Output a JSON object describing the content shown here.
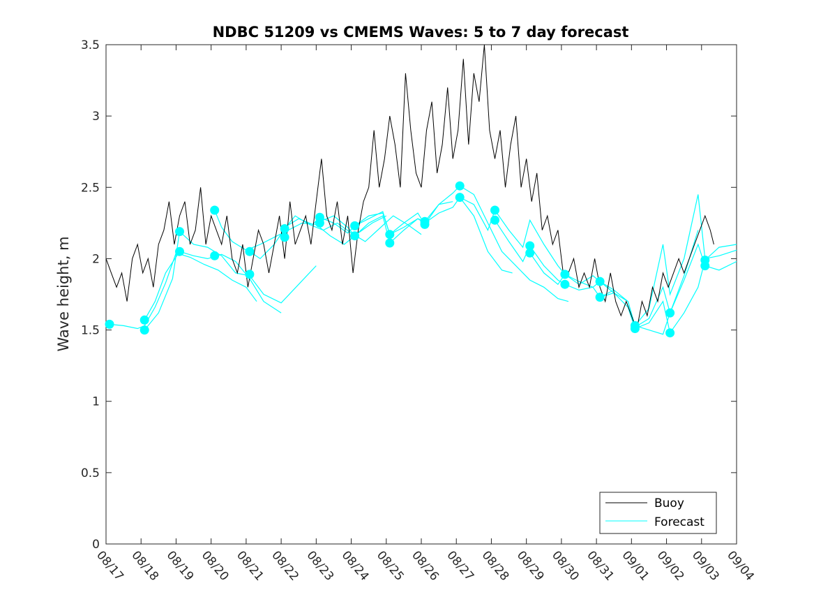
{
  "chart_data": {
    "type": "line",
    "title": "NDBC 51209 vs CMEMS Waves: 5 to 7 day forecast",
    "xlabel": "",
    "ylabel": "Wave height, m",
    "ylim": [
      0,
      3.5
    ],
    "yticks": [
      0,
      0.5,
      1,
      1.5,
      2,
      2.5,
      3,
      3.5
    ],
    "ytick_labels": [
      "0",
      "0.5",
      "1",
      "1.5",
      "2",
      "2.5",
      "3",
      "3.5"
    ],
    "xlim": [
      0,
      18
    ],
    "xtick_labels": [
      "08/17",
      "08/18",
      "08/19",
      "08/20",
      "08/21",
      "08/22",
      "08/23",
      "08/24",
      "08/25",
      "08/26",
      "08/27",
      "08/28",
      "08/29",
      "08/30",
      "08/31",
      "09/01",
      "09/02",
      "09/03",
      "09/04"
    ],
    "grid": false,
    "legend": {
      "position": "bottom-right",
      "entries": [
        "Buoy",
        "Forecast"
      ]
    },
    "colors": {
      "buoy": "#000000",
      "forecast": "#00ffff",
      "axes": "#262626"
    },
    "buoy": {
      "name": "Buoy",
      "days": [
        0.0,
        0.15,
        0.3,
        0.45,
        0.6,
        0.75,
        0.9,
        1.05,
        1.2,
        1.35,
        1.5,
        1.65,
        1.8,
        1.95,
        2.1,
        2.25,
        2.4,
        2.55,
        2.7,
        2.85,
        3.0,
        3.15,
        3.3,
        3.45,
        3.6,
        3.75,
        3.9,
        4.05,
        4.2,
        4.35,
        4.5,
        4.65,
        4.8,
        4.95,
        5.1,
        5.25,
        5.4,
        5.55,
        5.7,
        5.85,
        6.0,
        6.15,
        6.3,
        6.45,
        6.6,
        6.75,
        6.9,
        7.05,
        7.2,
        7.35,
        7.5,
        7.65,
        7.8,
        7.95,
        8.1,
        8.25,
        8.4,
        8.55,
        8.7,
        8.85,
        9.0,
        9.15,
        9.3,
        9.45,
        9.6,
        9.75,
        9.9,
        10.05,
        10.2,
        10.35,
        10.5,
        10.65,
        10.8,
        10.95,
        11.1,
        11.25,
        11.4,
        11.55,
        11.7,
        11.85,
        12.0,
        12.15,
        12.3,
        12.45,
        12.6,
        12.75,
        12.9,
        13.05,
        13.2,
        13.35,
        13.5,
        13.65,
        13.8,
        13.95,
        14.1,
        14.25,
        14.4,
        14.55,
        14.7,
        14.85,
        15.0,
        15.15,
        15.3,
        15.45,
        15.6,
        15.75,
        15.9,
        16.05,
        16.2,
        16.35,
        16.5,
        16.65,
        16.8,
        16.95,
        17.1,
        17.25,
        17.35
      ],
      "values": [
        2.0,
        1.9,
        1.8,
        1.9,
        1.7,
        2.0,
        2.1,
        1.9,
        2.0,
        1.8,
        2.1,
        2.2,
        2.4,
        2.1,
        2.3,
        2.4,
        2.1,
        2.2,
        2.5,
        2.1,
        2.3,
        2.2,
        2.1,
        2.3,
        2.0,
        1.9,
        2.1,
        1.8,
        2.0,
        2.2,
        2.1,
        1.9,
        2.1,
        2.3,
        2.0,
        2.4,
        2.1,
        2.2,
        2.3,
        2.1,
        2.4,
        2.7,
        2.3,
        2.2,
        2.4,
        2.1,
        2.3,
        1.9,
        2.2,
        2.4,
        2.5,
        2.9,
        2.5,
        2.7,
        3.0,
        2.8,
        2.5,
        3.3,
        2.9,
        2.6,
        2.5,
        2.9,
        3.1,
        2.6,
        2.8,
        3.2,
        2.7,
        2.9,
        3.4,
        2.8,
        3.3,
        3.1,
        3.5,
        2.9,
        2.7,
        2.9,
        2.5,
        2.8,
        3.0,
        2.5,
        2.7,
        2.4,
        2.6,
        2.2,
        2.3,
        2.1,
        2.2,
        1.9,
        1.9,
        2.0,
        1.8,
        1.9,
        1.8,
        2.0,
        1.8,
        1.7,
        1.9,
        1.7,
        1.6,
        1.7,
        1.6,
        1.5,
        1.7,
        1.6,
        1.8,
        1.7,
        1.9,
        1.8,
        1.9,
        2.0,
        1.9,
        2.0,
        2.1,
        2.2,
        2.3,
        2.2,
        2.1
      ]
    },
    "forecast": {
      "name": "Forecast",
      "series": [
        {
          "days": [
            0.1,
            0.5,
            0.9,
            1.1,
            1.4,
            1.7,
            2.0,
            2.4,
            2.8,
            3.2,
            3.6,
            4.0,
            4.3
          ],
          "values": [
            1.54,
            1.53,
            1.51,
            1.53,
            1.66,
            1.83,
            2.04,
            2.01,
            1.96,
            1.92,
            1.85,
            1.8,
            1.7
          ]
        },
        {
          "days": [
            1.1,
            1.4,
            1.7,
            2.1,
            2.5,
            2.9,
            3.3,
            3.7,
            4.1,
            4.5,
            5.0
          ],
          "values": [
            1.57,
            1.7,
            1.9,
            2.05,
            2.02,
            2.0,
            2.03,
            1.98,
            1.86,
            1.7,
            1.62
          ]
        },
        {
          "days": [
            1.1,
            1.5,
            1.9,
            2.1,
            2.5,
            2.9,
            3.3,
            3.7,
            4.1,
            4.5,
            5.0,
            5.5,
            6.0
          ],
          "values": [
            1.5,
            1.62,
            1.86,
            2.19,
            2.1,
            2.08,
            2.02,
            1.9,
            1.88,
            1.75,
            1.69,
            1.82,
            1.95
          ]
        },
        {
          "days": [
            3.1,
            3.3,
            3.6,
            4.0,
            4.4,
            4.8,
            5.2,
            5.6,
            6.0,
            6.4,
            6.8,
            7.2,
            7.6,
            8.0
          ],
          "values": [
            2.34,
            2.22,
            2.12,
            2.06,
            2.1,
            2.15,
            2.2,
            2.25,
            2.24,
            2.16,
            2.1,
            2.18,
            2.25,
            2.3
          ]
        },
        {
          "days": [
            4.1,
            4.4,
            4.8,
            5.1,
            5.4,
            5.8,
            6.2,
            6.6,
            7.0,
            7.4,
            7.8,
            8.2,
            8.6,
            9.0
          ],
          "values": [
            2.05,
            2.0,
            2.1,
            2.21,
            2.3,
            2.24,
            2.2,
            2.25,
            2.18,
            2.12,
            2.21,
            2.3,
            2.24,
            2.17
          ]
        },
        {
          "days": [
            5.1,
            5.5,
            5.9,
            6.1,
            6.5,
            6.9,
            7.1,
            7.5,
            7.9,
            8.1,
            8.5,
            8.9,
            9.1,
            9.5,
            9.9
          ],
          "values": [
            2.22,
            2.28,
            2.24,
            2.29,
            2.25,
            2.18,
            2.23,
            2.3,
            2.32,
            2.17,
            2.22,
            2.28,
            2.26,
            2.38,
            2.4
          ]
        },
        {
          "days": [
            6.1,
            6.5,
            6.9,
            7.1,
            7.5,
            7.9,
            8.1,
            8.5,
            8.9,
            9.1,
            9.5,
            9.9,
            10.1,
            10.5,
            10.9,
            11.3,
            11.6
          ],
          "values": [
            2.26,
            2.3,
            2.22,
            2.16,
            2.25,
            2.3,
            2.11,
            2.2,
            2.28,
            2.25,
            2.32,
            2.36,
            2.43,
            2.3,
            2.05,
            1.92,
            1.9
          ]
        },
        {
          "days": [
            7.1,
            7.5,
            7.9,
            8.1,
            8.5,
            8.9,
            9.1,
            9.5,
            9.9,
            10.1,
            10.5,
            10.9,
            11.3,
            11.7,
            12.1,
            12.5,
            12.9,
            13.2
          ],
          "values": [
            2.23,
            2.28,
            2.33,
            2.17,
            2.25,
            2.32,
            2.24,
            2.38,
            2.46,
            2.51,
            2.45,
            2.25,
            2.05,
            1.95,
            1.85,
            1.8,
            1.72,
            1.7
          ]
        },
        {
          "days": [
            10.1,
            10.5,
            10.9,
            11.1,
            11.5,
            11.9,
            12.1,
            12.5,
            12.9,
            13.1,
            13.5,
            13.9,
            14.1,
            14.5
          ],
          "values": [
            2.43,
            2.38,
            2.2,
            2.34,
            2.2,
            2.08,
            2.27,
            2.1,
            1.95,
            1.89,
            1.82,
            1.88,
            1.84,
            1.78
          ]
        },
        {
          "days": [
            11.1,
            11.5,
            11.9,
            12.1,
            12.5,
            12.9,
            13.1,
            13.5,
            13.9,
            14.1,
            14.5,
            14.9,
            15.1,
            15.5,
            15.9,
            16.1,
            16.5,
            16.9
          ],
          "values": [
            2.27,
            2.12,
            1.98,
            2.09,
            1.95,
            1.85,
            1.82,
            1.78,
            1.8,
            1.73,
            1.78,
            1.7,
            1.53,
            1.5,
            1.47,
            1.62,
            1.88,
            2.2
          ]
        },
        {
          "days": [
            12.1,
            12.5,
            12.9,
            13.1,
            13.5,
            13.9,
            14.1,
            14.5,
            14.9,
            15.1,
            15.5,
            15.9,
            16.1,
            16.5,
            16.9,
            17.1,
            17.5,
            18.0
          ],
          "values": [
            2.04,
            1.9,
            1.82,
            1.89,
            1.84,
            1.8,
            1.84,
            1.76,
            1.66,
            1.51,
            1.55,
            1.7,
            1.48,
            1.62,
            1.8,
            1.99,
            2.08,
            2.1
          ]
        },
        {
          "days": [
            14.1,
            14.5,
            14.9,
            15.1,
            15.5,
            15.9,
            16.1,
            16.5,
            16.9,
            17.1,
            17.5,
            18.0
          ],
          "values": [
            1.73,
            1.76,
            1.7,
            1.52,
            1.58,
            1.8,
            1.62,
            1.85,
            2.1,
            1.95,
            1.92,
            1.98
          ]
        },
        {
          "days": [
            15.1,
            15.5,
            15.9,
            16.1,
            16.5,
            16.9,
            17.1,
            17.5,
            18.0
          ],
          "values": [
            1.53,
            1.65,
            2.1,
            1.75,
            2.0,
            2.45,
            2.0,
            2.02,
            2.06
          ]
        }
      ],
      "markers": [
        {
          "day": 0.1,
          "value": 1.54
        },
        {
          "day": 1.1,
          "value": 1.57
        },
        {
          "day": 1.1,
          "value": 1.5
        },
        {
          "day": 2.1,
          "value": 2.19
        },
        {
          "day": 2.1,
          "value": 2.05
        },
        {
          "day": 3.1,
          "value": 2.34
        },
        {
          "day": 3.1,
          "value": 2.02
        },
        {
          "day": 4.1,
          "value": 2.05
        },
        {
          "day": 4.1,
          "value": 1.89
        },
        {
          "day": 5.1,
          "value": 2.21
        },
        {
          "day": 5.1,
          "value": 2.15
        },
        {
          "day": 6.1,
          "value": 2.29
        },
        {
          "day": 6.1,
          "value": 2.25
        },
        {
          "day": 7.1,
          "value": 2.23
        },
        {
          "day": 7.1,
          "value": 2.16
        },
        {
          "day": 8.1,
          "value": 2.17
        },
        {
          "day": 8.1,
          "value": 2.11
        },
        {
          "day": 9.1,
          "value": 2.26
        },
        {
          "day": 9.1,
          "value": 2.24
        },
        {
          "day": 10.1,
          "value": 2.51
        },
        {
          "day": 10.1,
          "value": 2.43
        },
        {
          "day": 11.1,
          "value": 2.34
        },
        {
          "day": 11.1,
          "value": 2.27
        },
        {
          "day": 12.1,
          "value": 2.09
        },
        {
          "day": 12.1,
          "value": 2.04
        },
        {
          "day": 13.1,
          "value": 1.89
        },
        {
          "day": 13.1,
          "value": 1.82
        },
        {
          "day": 14.1,
          "value": 1.84
        },
        {
          "day": 14.1,
          "value": 1.73
        },
        {
          "day": 15.1,
          "value": 1.53
        },
        {
          "day": 15.1,
          "value": 1.51
        },
        {
          "day": 16.1,
          "value": 1.62
        },
        {
          "day": 16.1,
          "value": 1.48
        },
        {
          "day": 17.1,
          "value": 1.99
        },
        {
          "day": 17.1,
          "value": 1.95
        }
      ]
    }
  }
}
